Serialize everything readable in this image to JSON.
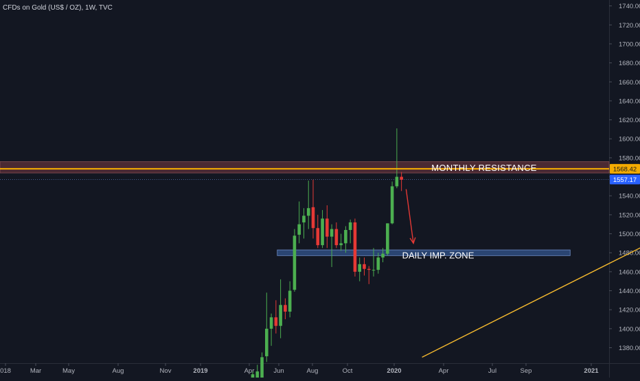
{
  "header": {
    "title": "CFDs on Gold (US$ / OZ), 1W, TVC"
  },
  "colors": {
    "background": "#131722",
    "up": "#26a69a",
    "down": "#ef5350",
    "candle_up": "#4caf50",
    "candle_down": "#e53935",
    "resistance_line": "#ffb300",
    "resistance_zone": "#7a3b3f",
    "demand_zone": "#2f4d80",
    "trendline": "#f5b92e",
    "arrow": "#e53935",
    "axis_text": "#b2b5be",
    "price_tag_blue": "#2962ff"
  },
  "chart_data": {
    "type": "candlestick",
    "title": "CFDs on Gold (US$ / OZ), 1W, TVC",
    "x_tick_labels": [
      "018",
      "Mar",
      "May",
      "Aug",
      "Nov",
      "2019",
      "Apr",
      "Jun",
      "Aug",
      "Oct",
      "2020",
      "Apr",
      "Jul",
      "Sep",
      "2021"
    ],
    "y_tick_labels": [
      "1380.00",
      "1400.00",
      "1420.00",
      "1440.00",
      "1460.00",
      "1480.00",
      "1500.00",
      "1520.00",
      "1540.00",
      "1560.00",
      "1580.00",
      "1600.00",
      "1620.00",
      "1640.00",
      "1660.00",
      "1680.00",
      "1700.00",
      "1720.00",
      "1740.00"
    ],
    "ylim": [
      1370,
      1745
    ],
    "price_tags": [
      {
        "label": "1568.42",
        "value": 1568.42,
        "style": "resistance"
      },
      {
        "label": "1557.17",
        "value": 1557.17,
        "style": "last"
      }
    ],
    "candles": [
      {
        "date": "2019-06-02",
        "o": 1343,
        "h": 1355,
        "l": 1340,
        "c": 1352
      },
      {
        "date": "2019-06-09",
        "o": 1348,
        "h": 1362,
        "l": 1345,
        "c": 1355
      },
      {
        "date": "2019-06-16",
        "o": 1340,
        "h": 1375,
        "l": 1335,
        "c": 1370
      },
      {
        "date": "2019-06-23",
        "o": 1371,
        "h": 1438,
        "l": 1365,
        "c": 1400
      },
      {
        "date": "2019-06-30",
        "o": 1400,
        "h": 1416,
        "l": 1382,
        "c": 1412
      },
      {
        "date": "2019-07-07",
        "o": 1412,
        "h": 1430,
        "l": 1395,
        "c": 1403
      },
      {
        "date": "2019-07-14",
        "o": 1403,
        "h": 1452,
        "l": 1390,
        "c": 1425
      },
      {
        "date": "2019-07-21",
        "o": 1425,
        "h": 1432,
        "l": 1410,
        "c": 1418
      },
      {
        "date": "2019-07-28",
        "o": 1418,
        "h": 1450,
        "l": 1412,
        "c": 1440
      },
      {
        "date": "2019-08-04",
        "o": 1441,
        "h": 1505,
        "l": 1439,
        "c": 1498
      },
      {
        "date": "2019-08-11",
        "o": 1499,
        "h": 1534,
        "l": 1490,
        "c": 1510
      },
      {
        "date": "2019-08-18",
        "o": 1512,
        "h": 1527,
        "l": 1495,
        "c": 1519
      },
      {
        "date": "2019-08-25",
        "o": 1519,
        "h": 1556,
        "l": 1505,
        "c": 1527
      },
      {
        "date": "2019-09-01",
        "o": 1528,
        "h": 1557,
        "l": 1495,
        "c": 1506
      },
      {
        "date": "2019-09-08",
        "o": 1506,
        "h": 1520,
        "l": 1485,
        "c": 1488
      },
      {
        "date": "2019-09-15",
        "o": 1488,
        "h": 1525,
        "l": 1485,
        "c": 1516
      },
      {
        "date": "2019-09-22",
        "o": 1516,
        "h": 1530,
        "l": 1485,
        "c": 1497
      },
      {
        "date": "2019-09-29",
        "o": 1497,
        "h": 1510,
        "l": 1465,
        "c": 1505
      },
      {
        "date": "2019-10-06",
        "o": 1505,
        "h": 1512,
        "l": 1485,
        "c": 1488
      },
      {
        "date": "2019-10-13",
        "o": 1488,
        "h": 1500,
        "l": 1482,
        "c": 1490
      },
      {
        "date": "2019-10-20",
        "o": 1490,
        "h": 1508,
        "l": 1480,
        "c": 1504
      },
      {
        "date": "2019-10-27",
        "o": 1504,
        "h": 1515,
        "l": 1490,
        "c": 1512
      },
      {
        "date": "2019-11-03",
        "o": 1512,
        "h": 1516,
        "l": 1455,
        "c": 1460
      },
      {
        "date": "2019-11-10",
        "o": 1460,
        "h": 1475,
        "l": 1450,
        "c": 1468
      },
      {
        "date": "2019-11-17",
        "o": 1468,
        "h": 1475,
        "l": 1456,
        "c": 1463
      },
      {
        "date": "2019-11-24",
        "o": 1463,
        "h": 1466,
        "l": 1447,
        "c": 1462
      },
      {
        "date": "2019-12-01",
        "o": 1462,
        "h": 1485,
        "l": 1455,
        "c": 1462
      },
      {
        "date": "2019-12-08",
        "o": 1462,
        "h": 1480,
        "l": 1458,
        "c": 1475
      },
      {
        "date": "2019-12-15",
        "o": 1475,
        "h": 1485,
        "l": 1470,
        "c": 1479
      },
      {
        "date": "2019-12-22",
        "o": 1479,
        "h": 1511,
        "l": 1477,
        "c": 1511
      },
      {
        "date": "2019-12-29",
        "o": 1511,
        "h": 1555,
        "l": 1510,
        "c": 1550
      },
      {
        "date": "2020-01-05",
        "o": 1550,
        "h": 1611,
        "l": 1548,
        "c": 1560
      },
      {
        "date": "2020-01-12",
        "o": 1560,
        "h": 1565,
        "l": 1545,
        "c": 1557
      }
    ],
    "annotations": [
      {
        "type": "hline",
        "label": "MONTHLY RESISTANCE",
        "value": 1568.42
      },
      {
        "type": "zone",
        "label": "",
        "from": 1564,
        "to": 1576
      },
      {
        "type": "zone",
        "label": "DAILY IMP. ZONE",
        "from": 1477,
        "to": 1483,
        "start": "2019-07-09",
        "end": "2020-09-22"
      },
      {
        "type": "trendline",
        "label": "",
        "from": {
          "date": "2020-02-12",
          "value": 1370
        },
        "to": {
          "date": "2021-04-15",
          "value": 1520
        }
      },
      {
        "type": "arrow",
        "label": "",
        "from": {
          "date": "2020-01-19",
          "value": 1547
        },
        "to": {
          "date": "2020-01-30",
          "value": 1490
        }
      }
    ]
  }
}
